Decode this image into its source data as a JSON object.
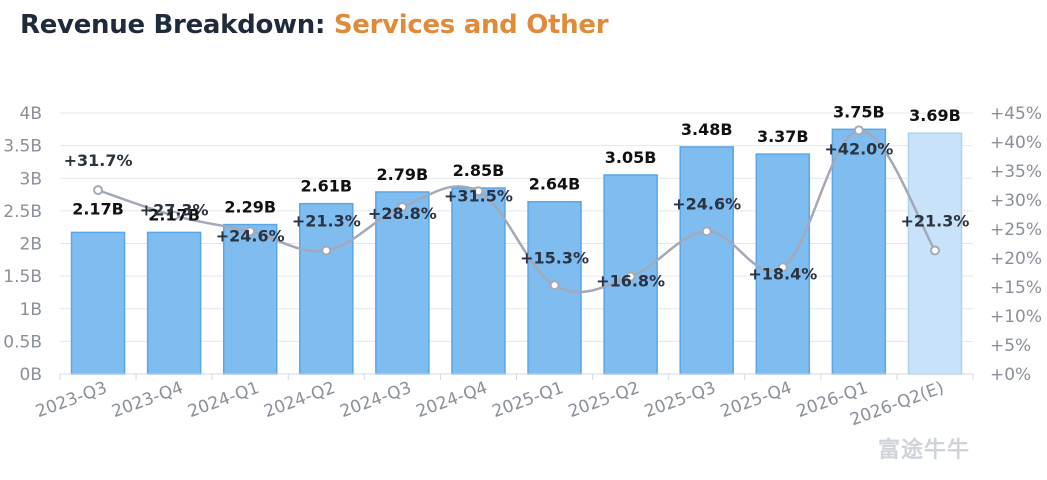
{
  "title": {
    "main": "Revenue Breakdown: ",
    "accent": "Services and Other"
  },
  "colors": {
    "title_main": "#1f2a3c",
    "title_accent": "#e08a3a",
    "bar": "#7fbdf0",
    "bar_border": "#5aa6e6",
    "bar_estimate": "#c8e3f9",
    "bar_estimate_border": "#a9d2f5",
    "line": "#a3a9b8",
    "axis_label": "#8a8f99",
    "value_label": "#111111"
  },
  "watermark": "富途牛牛",
  "chart_data": {
    "type": "bar",
    "categories": [
      "2023-Q3",
      "2023-Q4",
      "2024-Q1",
      "2024-Q2",
      "2024-Q3",
      "2024-Q4",
      "2025-Q1",
      "2025-Q2",
      "2025-Q3",
      "2025-Q4",
      "2026-Q1",
      "2026-Q2(E)"
    ],
    "series": [
      {
        "type": "bar",
        "values": [
          2.17,
          2.17,
          2.29,
          2.61,
          2.79,
          2.85,
          2.64,
          3.05,
          3.48,
          3.37,
          3.75,
          3.69
        ],
        "labels": [
          "2.17B",
          "2.17B",
          "2.29B",
          "2.61B",
          "2.79B",
          "2.85B",
          "2.64B",
          "3.05B",
          "3.48B",
          "3.37B",
          "3.75B",
          "3.69B"
        ],
        "estimate_flags": [
          false,
          false,
          false,
          false,
          false,
          false,
          false,
          false,
          false,
          false,
          false,
          true
        ]
      },
      {
        "type": "line",
        "axis": "right",
        "values": [
          31.7,
          27.3,
          24.6,
          21.3,
          28.8,
          31.5,
          15.3,
          16.8,
          24.6,
          18.4,
          42.0,
          21.3
        ],
        "labels": [
          "+31.7%",
          "+27.3%",
          "+24.6%",
          "+21.3%",
          "+28.8%",
          "+31.5%",
          "+15.3%",
          "+16.8%",
          "+24.6%",
          "+18.4%",
          "+42.0%",
          "+21.3%"
        ]
      }
    ],
    "y_left": {
      "range": [
        0,
        4
      ],
      "ticks": [
        0,
        0.5,
        1,
        1.5,
        2,
        2.5,
        3,
        3.5,
        4
      ],
      "tick_labels": [
        "0B",
        "0.5B",
        "1B",
        "1.5B",
        "2B",
        "2.5B",
        "3B",
        "3.5B",
        "4B"
      ]
    },
    "y_right": {
      "range": [
        0,
        45
      ],
      "ticks": [
        0,
        5,
        10,
        15,
        20,
        25,
        30,
        35,
        40,
        45
      ],
      "tick_labels": [
        "+0%",
        "+5%",
        "+10%",
        "+15%",
        "+20%",
        "+25%",
        "+30%",
        "+35%",
        "+40%",
        "+45%"
      ]
    },
    "grid": true,
    "legend": "none"
  }
}
